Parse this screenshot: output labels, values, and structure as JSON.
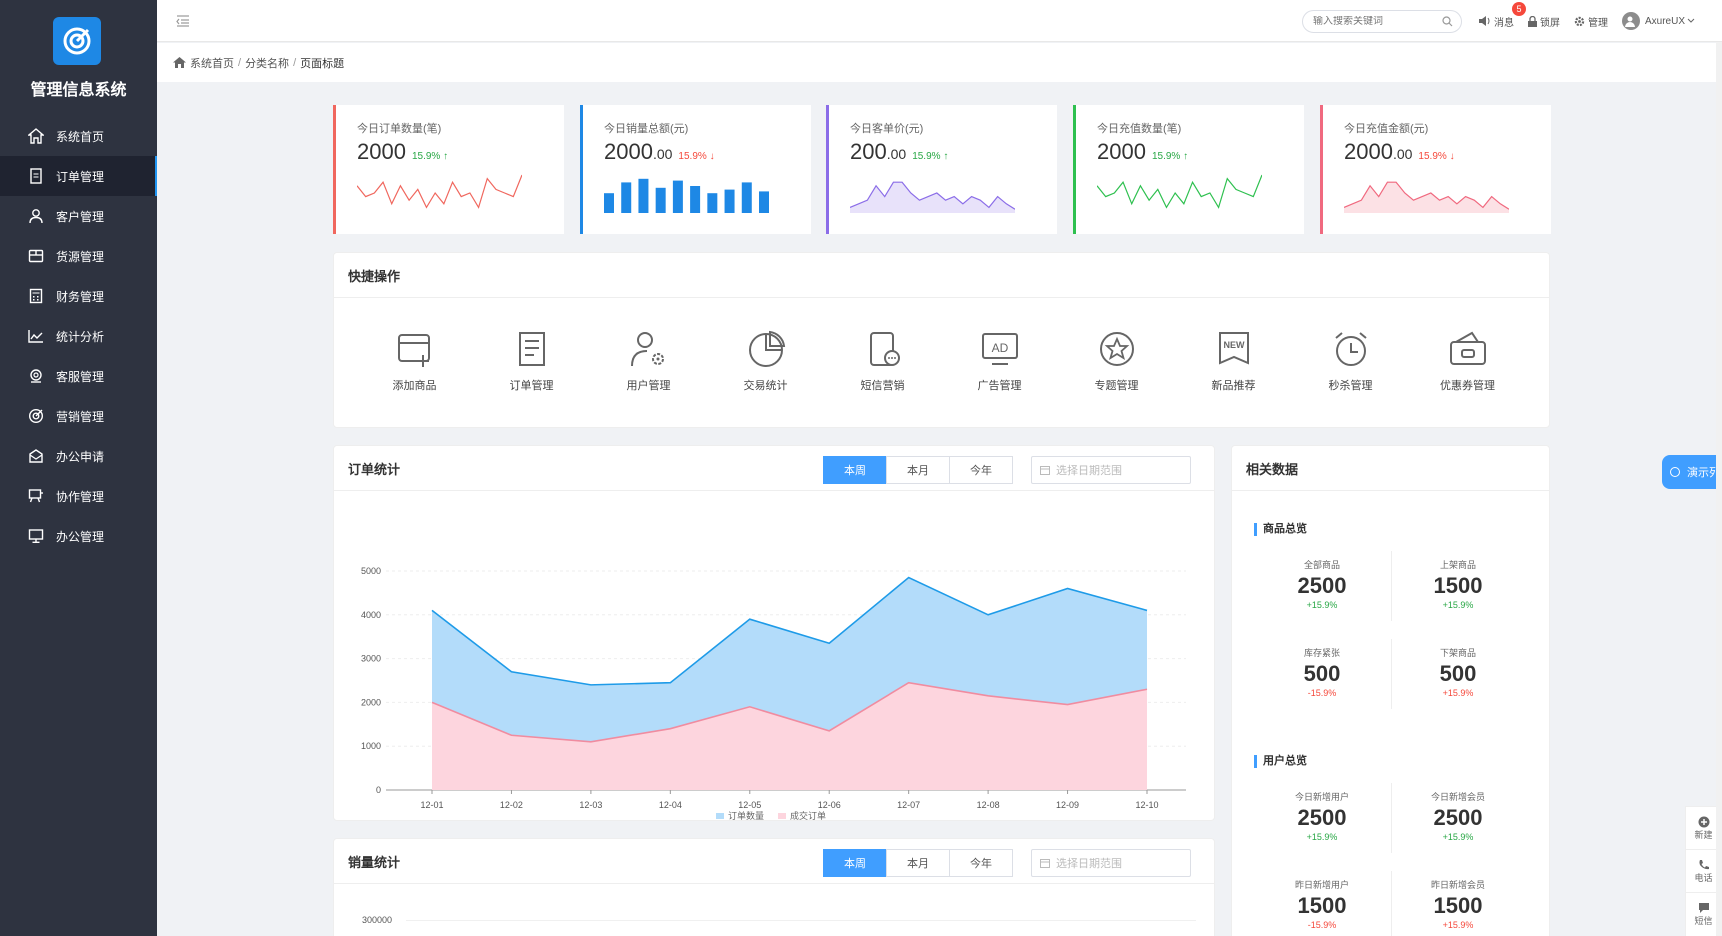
{
  "app": {
    "title": "管理信息系统"
  },
  "sidebar": {
    "items": [
      {
        "label": "系统首页",
        "icon": "home-icon"
      },
      {
        "label": "订单管理",
        "icon": "document-icon",
        "active": true
      },
      {
        "label": "客户管理",
        "icon": "user-icon"
      },
      {
        "label": "货源管理",
        "icon": "box-icon"
      },
      {
        "label": "财务管理",
        "icon": "calculator-icon"
      },
      {
        "label": "统计分析",
        "icon": "chart-icon"
      },
      {
        "label": "客服管理",
        "icon": "headset-icon"
      },
      {
        "label": "营销管理",
        "icon": "target-icon"
      },
      {
        "label": "办公申请",
        "icon": "mail-icon"
      },
      {
        "label": "协作管理",
        "icon": "board-icon"
      },
      {
        "label": "办公管理",
        "icon": "monitor-icon"
      }
    ]
  },
  "topbar": {
    "search_placeholder": "输入搜索关键词",
    "message_label": "消息",
    "message_badge": "5",
    "lock_label": "锁屏",
    "manage_label": "管理",
    "user_name": "AxureUX"
  },
  "breadcrumb": {
    "home": "系统首页",
    "category": "分类名称",
    "page": "页面标题"
  },
  "stats": [
    {
      "title": "今日订单数量(笔)",
      "value": "2000",
      "decimal": "",
      "percent": "15.9%",
      "trend": "up",
      "color": "#f0675e",
      "spark": "line"
    },
    {
      "title": "今日销量总额(元)",
      "value": "2000",
      "decimal": ".00",
      "percent": "15.9%",
      "trend": "down",
      "color": "#1e88e5",
      "spark": "bar"
    },
    {
      "title": "今日客单价(元)",
      "value": "200",
      "decimal": ".00",
      "percent": "15.9%",
      "trend": "up",
      "color": "#8b6de8",
      "spark": "area"
    },
    {
      "title": "今日充值数量(笔)",
      "value": "2000",
      "decimal": "",
      "percent": "15.9%",
      "trend": "up",
      "color": "#2ec04f",
      "spark": "line"
    },
    {
      "title": "今日充值金额(元)",
      "value": "2000",
      "decimal": ".00",
      "percent": "15.9%",
      "trend": "down",
      "color": "#f0697f",
      "spark": "area"
    }
  ],
  "quick": {
    "title": "快捷操作",
    "items": [
      {
        "label": "添加商品",
        "icon": "add-product-icon"
      },
      {
        "label": "订单管理",
        "icon": "order-icon"
      },
      {
        "label": "用户管理",
        "icon": "user-settings-icon"
      },
      {
        "label": "交易统计",
        "icon": "pie-chart-icon"
      },
      {
        "label": "短信营销",
        "icon": "sms-icon"
      },
      {
        "label": "广告管理",
        "icon": "ad-icon"
      },
      {
        "label": "专题管理",
        "icon": "star-icon"
      },
      {
        "label": "新品推荐",
        "icon": "new-badge-icon"
      },
      {
        "label": "秒杀管理",
        "icon": "alarm-clock-icon"
      },
      {
        "label": "优惠券管理",
        "icon": "wallet-icon"
      }
    ]
  },
  "order_stats": {
    "title": "订单统计",
    "tabs": [
      "本周",
      "本月",
      "今年"
    ],
    "date_placeholder": "选择日期范围"
  },
  "sales_stats": {
    "title": "销量统计",
    "tabs": [
      "本周",
      "本月",
      "今年"
    ],
    "date_placeholder": "选择日期范围",
    "first_tick": "300000"
  },
  "related": {
    "title": "相关数据",
    "goods_title": "商品总览",
    "goods": [
      {
        "label": "全部商品",
        "value": "2500",
        "pct": "+15.9%",
        "trend": "up"
      },
      {
        "label": "上架商品",
        "value": "1500",
        "pct": "+15.9%",
        "trend": "up"
      },
      {
        "label": "库存紧张",
        "value": "500",
        "pct": "-15.9%",
        "trend": "down"
      },
      {
        "label": "下架商品",
        "value": "500",
        "pct": "+15.9%",
        "trend": "down"
      }
    ],
    "users_title": "用户总览",
    "users": [
      {
        "label": "今日新增用户",
        "value": "2500",
        "pct": "+15.9%",
        "trend": "up"
      },
      {
        "label": "今日新增会员",
        "value": "2500",
        "pct": "+15.9%",
        "trend": "up"
      },
      {
        "label": "昨日新增用户",
        "value": "1500",
        "pct": "-15.9%",
        "trend": "down"
      },
      {
        "label": "昨日新增会员",
        "value": "1500",
        "pct": "+15.9%",
        "trend": "down"
      }
    ]
  },
  "floating": {
    "demo_label": "演示列",
    "side": [
      {
        "label": "新建",
        "icon": "plus-circle-icon"
      },
      {
        "label": "电话",
        "icon": "phone-icon"
      },
      {
        "label": "短信",
        "icon": "chat-icon"
      }
    ]
  },
  "chart_data": {
    "type": "area",
    "categories": [
      "12-01",
      "12-02",
      "12-03",
      "12-04",
      "12-05",
      "12-06",
      "12-07",
      "12-08",
      "12-09",
      "12-10"
    ],
    "series": [
      {
        "name": "订单数量",
        "values": [
          4100,
          2700,
          2400,
          2450,
          3900,
          3350,
          4850,
          4000,
          4600,
          4100
        ],
        "color": "#1e9be8",
        "fill": "#b3dcfa"
      },
      {
        "name": "成交订单",
        "values": [
          2000,
          1250,
          1100,
          1400,
          1900,
          1350,
          2450,
          2150,
          1950,
          2300
        ],
        "color": "#f08ca0",
        "fill": "#fdd5de"
      }
    ],
    "yticks": [
      "0",
      "1000",
      "2000",
      "3000",
      "4000",
      "5000"
    ],
    "ylim": [
      0,
      5000
    ],
    "grid": true,
    "legend": "bottom"
  }
}
